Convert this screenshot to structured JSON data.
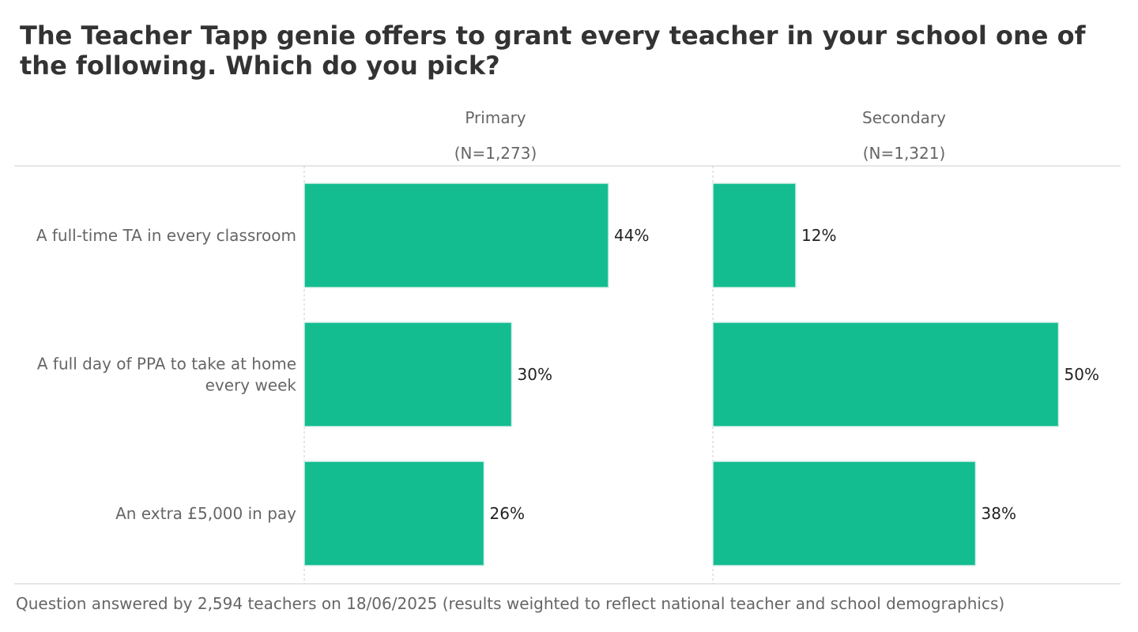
{
  "title": "The Teacher Tapp genie offers to grant every teacher in your school one of the following. Which do you pick?",
  "footer": "Question answered by 2,594 teachers on 18/06/2025 (results weighted to reflect national teacher and school demographics)",
  "colors": {
    "bar": "#13bd90",
    "bar_edge": "#d9efe8",
    "grid": "#cccccc",
    "label": "#666666",
    "value": "#222222"
  },
  "chart_data": {
    "type": "bar",
    "orientation": "horizontal",
    "categories": [
      [
        "A full-time TA in every classroom"
      ],
      [
        "A full day of PPA to take at home",
        "every week"
      ],
      [
        "An extra £5,000 in pay"
      ]
    ],
    "panels": [
      {
        "name": "Primary",
        "n_label": "(N=1,273)",
        "values": [
          44,
          30,
          26
        ],
        "value_labels": [
          "44%",
          "30%",
          "26%"
        ]
      },
      {
        "name": "Secondary",
        "n_label": "(N=1,321)",
        "values": [
          12,
          50,
          38
        ],
        "value_labels": [
          "12%",
          "50%",
          "38%"
        ]
      }
    ],
    "xlim": [
      0,
      60
    ],
    "grid": true
  }
}
